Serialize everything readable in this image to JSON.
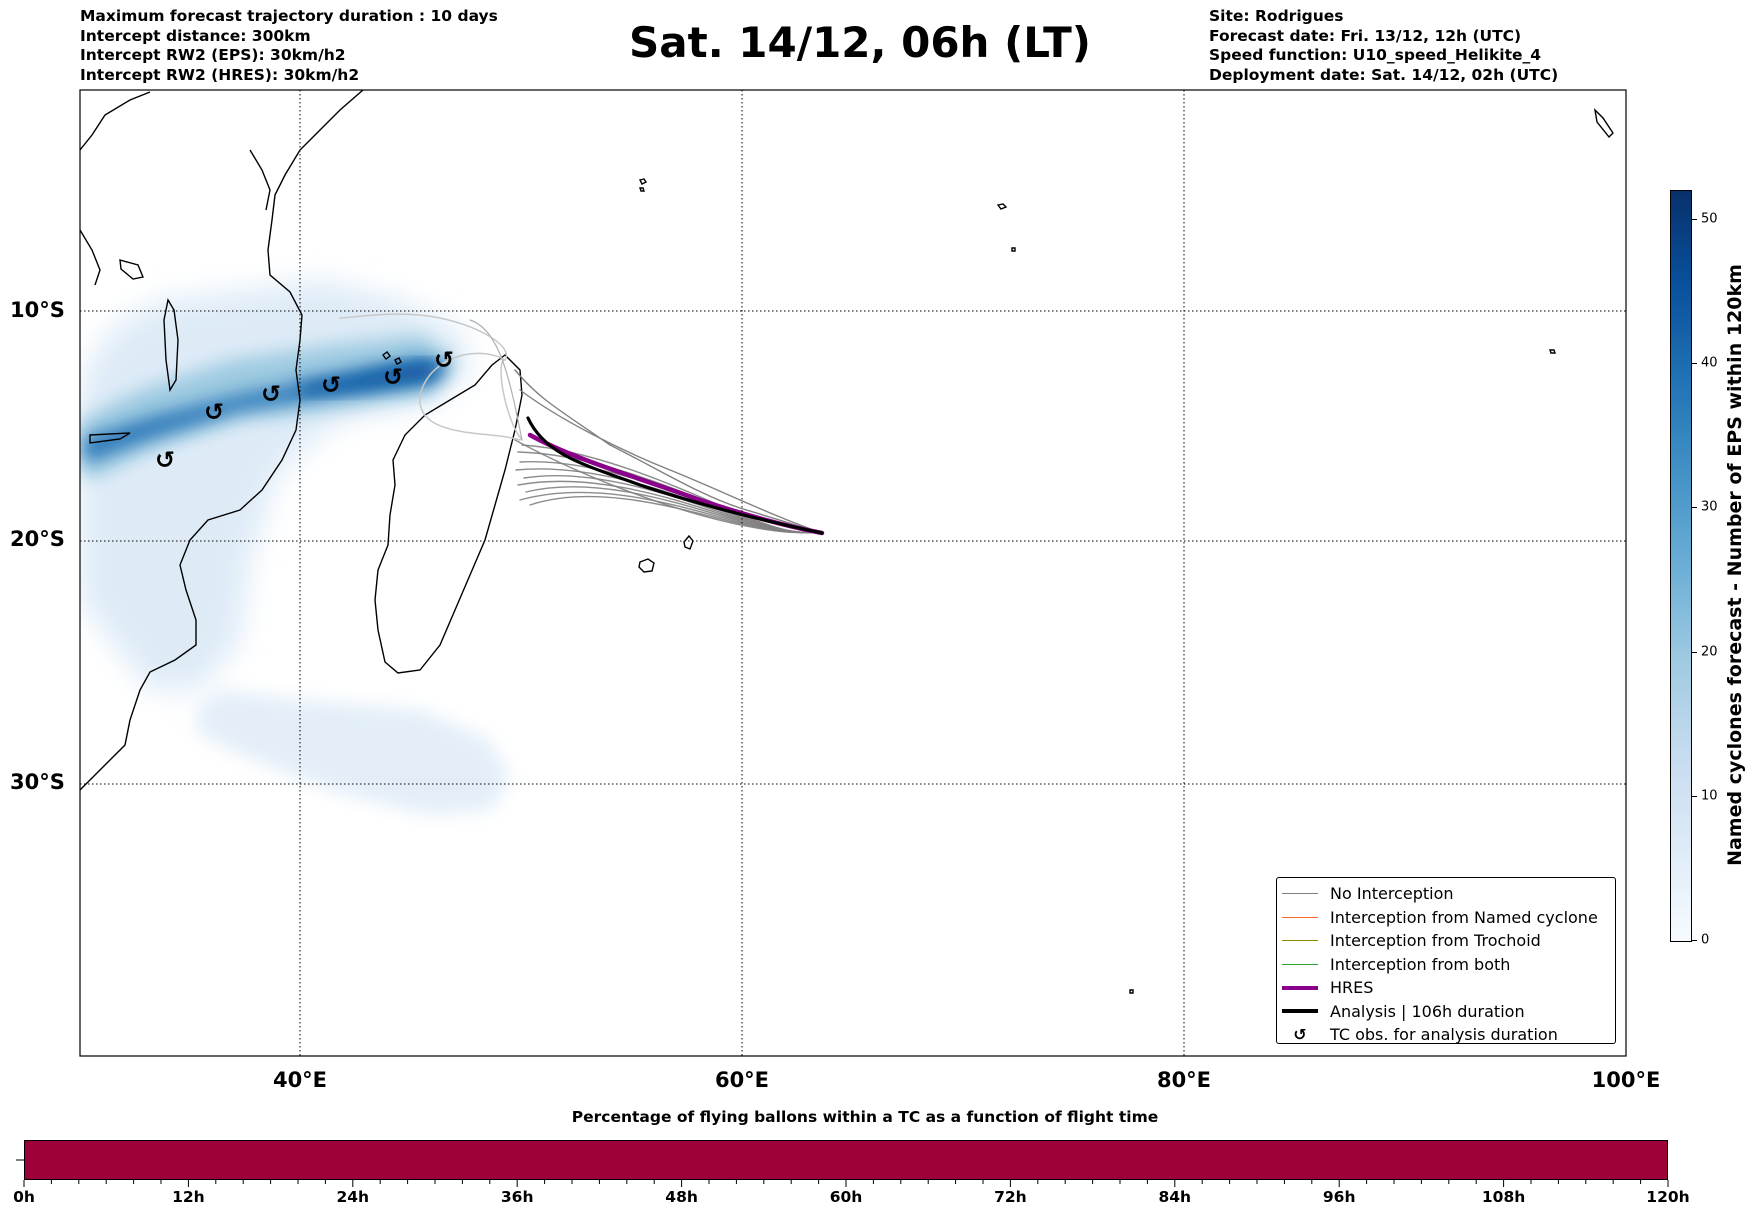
{
  "header": {
    "left_lines": [
      "Maximum forecast trajectory duration : 10 days",
      "Intercept distance: 300km",
      "Intercept RW2 (EPS):  30km/h2",
      "Intercept RW2 (HRES): 30km/h2"
    ],
    "title": "Sat. 14/12, 06h (LT)",
    "right_lines": [
      "Site: Rodrigues",
      "Forecast date: Fri. 13/12, 12h (UTC)",
      "Speed function: U10_speed_Helikite_4",
      "Deployment date: Sat. 14/12, 02h (UTC)"
    ]
  },
  "map": {
    "lat_labels": [
      "10°S",
      "20°S",
      "30°S"
    ],
    "lon_labels": [
      "40°E",
      "60°E",
      "80°E",
      "100°E"
    ],
    "colors": {
      "coast": "#000000",
      "no_interception": "#808080",
      "hres": "#8b008b",
      "analysis": "#000000",
      "density_blues": [
        "#f7fbff",
        "#deebf7",
        "#c6dbef",
        "#9ecae1",
        "#6baed6",
        "#4292c6",
        "#2171b5",
        "#08519c",
        "#08306b"
      ]
    }
  },
  "legend": {
    "items": [
      {
        "label": "No Interception",
        "color": "#808080"
      },
      {
        "label": "Interception from Named cyclone",
        "color": "#ff6a2b"
      },
      {
        "label": "Interception from Trochoid",
        "color": "#8b8b00"
      },
      {
        "label": "Interception from both",
        "color": "#2ca02c"
      },
      {
        "label": "HRES",
        "color": "#8b008b"
      },
      {
        "label": "Analysis | 106h duration",
        "color": "#000000"
      },
      {
        "label": "TC obs. for analysis duration",
        "color": "#000000",
        "symbol": "cyclone-symbol"
      }
    ]
  },
  "colorbar": {
    "label": "Named cyclones forecast - Number of EPS within 120km",
    "ticks": [
      "0",
      "10",
      "20",
      "30",
      "40",
      "50"
    ],
    "min": 0,
    "max": 52
  },
  "bottom_bar": {
    "title": "Percentage of flying ballons within a TC as a function of flight time",
    "tick_labels": [
      "0h",
      "12h",
      "24h",
      "36h",
      "48h",
      "60h",
      "72h",
      "84h",
      "96h",
      "108h",
      "120h"
    ],
    "fill_color": "#9e003a"
  }
}
